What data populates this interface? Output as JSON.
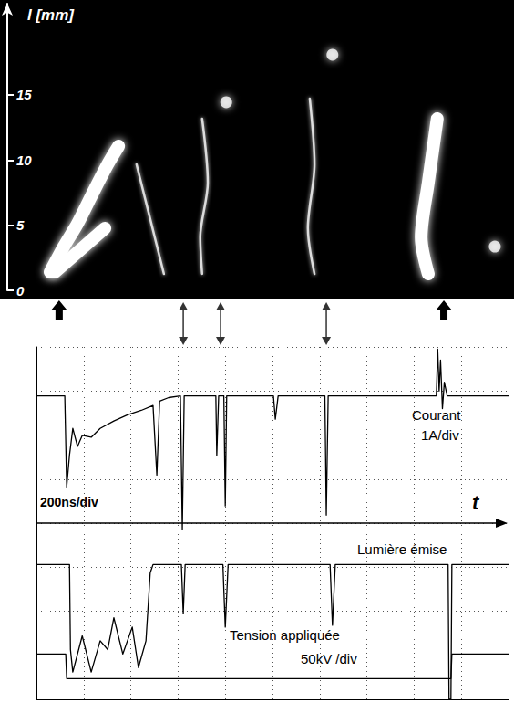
{
  "chart_data": [
    {
      "type": "line",
      "y_label": "l [mm]",
      "xlim": [
        0,
        10
      ],
      "ylim": [
        0,
        22
      ],
      "yticks": [
        0,
        5,
        10,
        15
      ],
      "tick_labels": "y",
      "grid": false,
      "series": [
        {
          "color": "#ffffff",
          "line_style": "thick",
          "x": [
            0.29,
            0.58,
            0.87,
            1.16,
            1.51,
            1.74
          ],
          "values": [
            1.4,
            3.36,
            5.12,
            7.22,
            9.67,
            11.07
          ]
        },
        {
          "color": "#ffffff",
          "line_style": "thick",
          "x": [
            0.39,
            1.45
          ],
          "values": [
            1.4,
            4.77
          ]
        },
        {
          "color": "#ffffff",
          "line_style": "thin",
          "x": [
            2.12,
            2.41,
            2.7
          ],
          "values": [
            9.67,
            5.47,
            1.26
          ]
        },
        {
          "color": "#ffffff",
          "line_style": "thin",
          "x": [
            3.51,
            3.63,
            3.47,
            3.51
          ],
          "values": [
            13.17,
            8.27,
            4.07,
            1.26
          ]
        },
        {
          "type": "scatter",
          "marker": "circle",
          "color": "#ffffff",
          "x": [
            4.02
          ],
          "values": [
            14.44
          ]
        },
        {
          "color": "#ffffff",
          "line_style": "thin",
          "x": [
            5.79,
            5.89,
            5.75,
            5.89
          ],
          "values": [
            14.72,
            9.67,
            4.77,
            1.26
          ]
        },
        {
          "type": "scatter",
          "marker": "circle",
          "color": "#ffffff",
          "x": [
            6.27
          ],
          "values": [
            18.08
          ]
        },
        {
          "color": "#ffffff",
          "line_style": "thick",
          "x": [
            8.49,
            8.3,
            8.15,
            8.3
          ],
          "values": [
            13.17,
            8.27,
            4.07,
            1.26
          ]
        },
        {
          "type": "scatter",
          "marker": "circle",
          "color": "#ffffff",
          "x": [
            9.71
          ],
          "values": [
            3.36
          ]
        }
      ]
    },
    {
      "type": "line",
      "x_label": "t",
      "xlim": [
        0,
        10
      ],
      "ylim": [
        0,
        8
      ],
      "xticks": [
        0,
        1,
        2,
        3,
        4,
        5,
        6,
        7,
        8,
        9,
        10
      ],
      "yticks": [
        0,
        1,
        2,
        3,
        4,
        5,
        6,
        7,
        8
      ],
      "tick_labels": false,
      "grid": true,
      "annotations": {
        "timebase": "200ns/div",
        "current": [
          "Courant",
          "1A/div"
        ],
        "light": "Lumière émise",
        "voltage": [
          "Tension appliquée",
          "50kV /div"
        ]
      },
      "event_arrows": [
        {
          "x": 0.48,
          "kind": "single"
        },
        {
          "x": 3.11,
          "kind": "double"
        },
        {
          "x": 3.9,
          "kind": "double"
        },
        {
          "x": 6.14,
          "kind": "double"
        },
        {
          "x": 8.63,
          "kind": "single"
        }
      ],
      "series": [
        {
          "color": "#000000",
          "line_style": "solid",
          "x": [
            0,
            0.6,
            0.64,
            0.7,
            0.77,
            0.87,
            0.97,
            1.16,
            1.35,
            1.64,
            1.93,
            2.22,
            2.47,
            2.55,
            2.61,
            2.8,
            3.05,
            3.09,
            3.13,
            3.8,
            3.82,
            3.86,
            3.97,
            4.0,
            4.03,
            5.02,
            5.06,
            5.12,
            6.11,
            6.14,
            6.18,
            8.47,
            8.5,
            8.53,
            8.56,
            8.6,
            8.64,
            8.7,
            10
          ],
          "values": [
            6.89,
            6.89,
            4.82,
            5.54,
            6.15,
            5.74,
            5.99,
            5.95,
            6.15,
            6.32,
            6.46,
            6.56,
            6.67,
            5.09,
            6.77,
            6.85,
            6.89,
            3.86,
            6.89,
            6.89,
            5.54,
            6.89,
            6.89,
            4.39,
            6.89,
            6.89,
            6.36,
            6.89,
            6.89,
            4.18,
            6.89,
            6.89,
            7.95,
            7.0,
            7.7,
            6.6,
            7.2,
            6.89,
            6.89
          ]
        },
        {
          "color": "#000000",
          "line_style": "solid",
          "x": [
            0,
            0.7,
            0.72,
            0.77,
            0.97,
            1.16,
            1.35,
            1.51,
            1.64,
            1.83,
            2.03,
            2.16,
            2.32,
            2.41,
            2.47,
            3.07,
            3.11,
            3.15,
            3.95,
            4.0,
            4.06,
            6.22,
            6.27,
            6.33,
            8.72,
            8.74,
            8.78,
            8.8,
            10
          ],
          "values": [
            3.06,
            3.06,
            1.13,
            0.62,
            1.44,
            0.62,
            1.33,
            1.13,
            1.85,
            1.03,
            1.64,
            0.72,
            1.33,
            2.87,
            3.06,
            3.06,
            1.95,
            3.06,
            3.06,
            1.64,
            3.06,
            3.06,
            1.68,
            3.06,
            3.06,
            0,
            0,
            3.06,
            3.06
          ]
        },
        {
          "color": "#000000",
          "line_style": "solid",
          "x": [
            0,
            0.62,
            0.64,
            8.78,
            8.8,
            10
          ],
          "values": [
            1.03,
            1.03,
            0.47,
            0.47,
            1.03,
            1.03
          ]
        }
      ]
    }
  ]
}
